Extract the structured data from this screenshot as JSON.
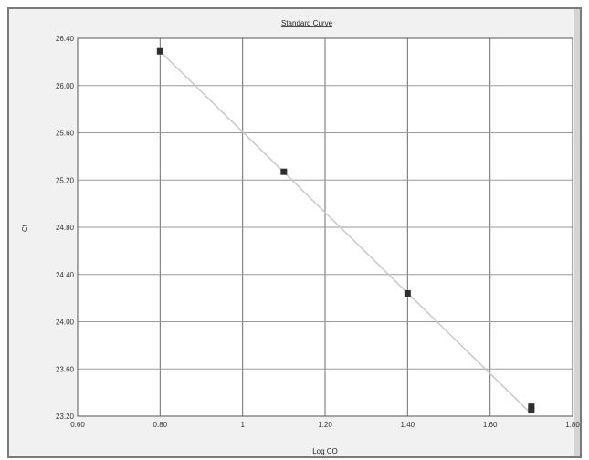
{
  "chart_data": {
    "type": "scatter",
    "title": "Standard Curve",
    "xlabel": "Log CO",
    "ylabel": "Ct",
    "xlim": [
      0.6,
      1.8
    ],
    "ylim": [
      23.2,
      26.4
    ],
    "x_ticks": [
      "0.60",
      "0.80",
      "1",
      "1.20",
      "1.40",
      "1.60",
      "1.80"
    ],
    "y_ticks": [
      "23.20",
      "23.60",
      "24.00",
      "24.40",
      "24.80",
      "25.20",
      "25.60",
      "26.00",
      "26.40"
    ],
    "grid": true,
    "series": [
      {
        "points": [
          {
            "x": 0.8,
            "y": 26.29
          },
          {
            "x": 1.1,
            "y": 25.27
          },
          {
            "x": 1.4,
            "y": 24.24
          },
          {
            "x": 1.7,
            "y": 23.28
          },
          {
            "x": 1.7,
            "y": 23.25
          }
        ]
      }
    ],
    "trendline": {
      "x": [
        0.8,
        1.7
      ],
      "y": [
        26.29,
        23.22
      ]
    },
    "colors": {
      "plot_background": "#ffffff",
      "panel_background": "#f1f1f1",
      "grid": "#6e6e6e",
      "marker": "#2f2f2f",
      "trendline": "#c8c8c8"
    }
  }
}
